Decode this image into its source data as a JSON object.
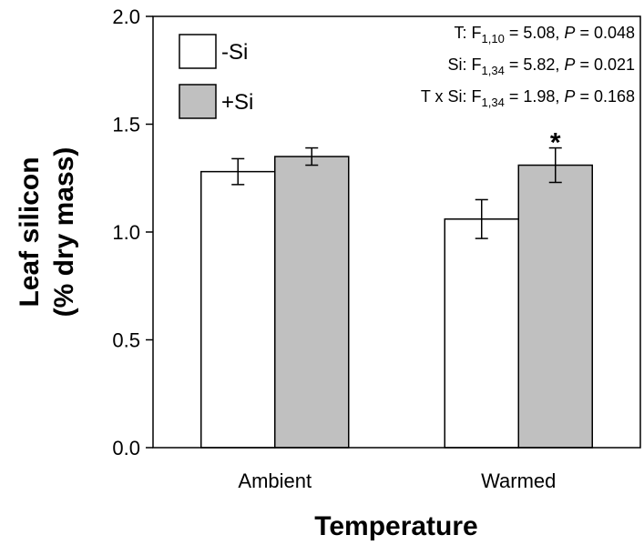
{
  "chart_data": {
    "type": "bar",
    "x_label": "Temperature",
    "y_label": [
      "Leaf silicon",
      "(% dry mass)"
    ],
    "categories": [
      "Ambient",
      "Warmed"
    ],
    "series": [
      {
        "name": "-Si",
        "color": "#ffffff",
        "values": [
          1.28,
          1.06
        ],
        "errors": [
          0.06,
          0.09
        ],
        "markers": [
          null,
          null
        ]
      },
      {
        "name": "+Si",
        "color": "#c0c0c0",
        "values": [
          1.35,
          1.31
        ],
        "errors": [
          0.04,
          0.08
        ],
        "markers": [
          null,
          "*"
        ]
      }
    ],
    "ylim": [
      0,
      2
    ],
    "yticks": [
      {
        "value": 0,
        "label": "0.0"
      },
      {
        "value": 0.5,
        "label": "0.5"
      },
      {
        "value": 1,
        "label": "1.0"
      },
      {
        "value": 1.5,
        "label": "1.5"
      },
      {
        "value": 2,
        "label": "2.0"
      }
    ],
    "legend": "upper left",
    "annotations": [
      [
        "T: F",
        "1,10",
        " = 5.08, ",
        "P",
        " = 0.048"
      ],
      [
        "Si: F",
        "1,34",
        " = 5.82, ",
        "P",
        " = 0.021"
      ],
      [
        "T x Si: F",
        "1,34",
        " = 1.98, ",
        "P",
        " = 0.168"
      ]
    ]
  }
}
